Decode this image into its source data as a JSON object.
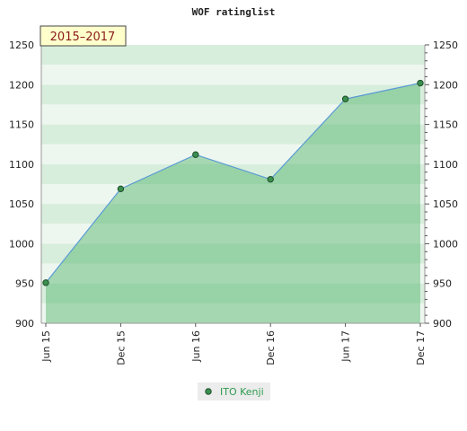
{
  "chart_data": {
    "type": "area",
    "title": "WOF ratinglist",
    "period_badge": "2015–2017",
    "categories": [
      "Jun 15",
      "Dec 15",
      "Jun 16",
      "Dec 16",
      "Jun 17",
      "Dec 17"
    ],
    "series": [
      {
        "name": "ITO Kenji",
        "values": [
          951,
          1069,
          1112,
          1081,
          1182,
          1202
        ]
      }
    ],
    "ylim": [
      900,
      1250
    ],
    "yticks": [
      900,
      950,
      1000,
      1050,
      1100,
      1150,
      1200,
      1250
    ],
    "xlabel": "",
    "ylabel": "",
    "grid": true,
    "legend": "bottom-center",
    "colors": {
      "line": "#5b9bd5",
      "fill": "#4caf66",
      "marker": "#3a8f4e",
      "band_light": "#eef7ef",
      "band_dark": "#d8eedc",
      "badge_bg": "#ffffcc",
      "badge_text": "#8b1a1a",
      "legend_text": "#2e9a4e"
    }
  }
}
